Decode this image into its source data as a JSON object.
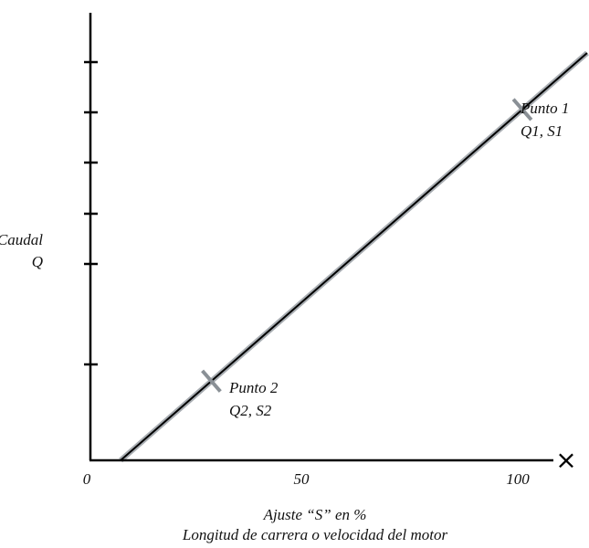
{
  "chart_data": {
    "type": "line",
    "xlabel_line1": "Ajuste “S” en %",
    "xlabel_line2": "Longitud de carrera o velocidad del motor",
    "ylabel_line1": "Caudal",
    "ylabel_line2": "Q",
    "x_ticks": [
      "0",
      "50",
      "100"
    ],
    "xlim": [
      0,
      115
    ],
    "ylim": [
      0,
      100
    ],
    "grid": false,
    "x_axis_end_marker": "×",
    "series": [
      {
        "x": [
          7,
          115
        ],
        "y": [
          0,
          100
        ]
      }
    ],
    "points": [
      {
        "name_line1": "Punto 1",
        "name_line2": "Q1, S1",
        "x": 100,
        "y": 86
      },
      {
        "name_line1": "Punto 2",
        "name_line2": "Q2, S2",
        "x": 28,
        "y": 19
      }
    ]
  }
}
